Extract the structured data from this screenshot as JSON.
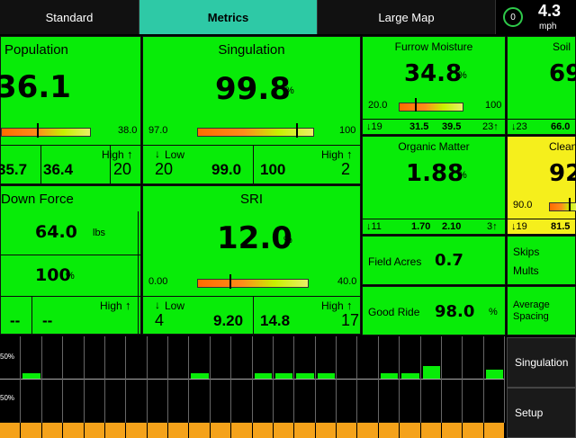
{
  "tabs": [
    {
      "label": "Standard"
    },
    {
      "label": "Metrics"
    },
    {
      "label": "Large Map"
    }
  ],
  "status": {
    "badge": "0",
    "speed": "4.3",
    "unit": "mph"
  },
  "population": {
    "title": "Population",
    "value": "36.1",
    "scale_max": "38.0",
    "low": "35.7",
    "mid": "36.4",
    "high_label": "High",
    "high": "20"
  },
  "singulation": {
    "title": "Singulation",
    "value": "99.8",
    "unit": "%",
    "scale_min": "97.0",
    "scale_max": "100",
    "low_label": "Low",
    "low": "20",
    "mid1": "99.0",
    "mid2": "100",
    "high_label": "High",
    "high": "2"
  },
  "furrow": {
    "title": "Furrow Moisture",
    "value": "34.8",
    "unit": "%",
    "scale_min": "20.0",
    "scale_max": "100",
    "s1": "19",
    "s2": "31.5",
    "s3": "39.5",
    "s4": "23"
  },
  "soil": {
    "title": "Soil",
    "value": "69",
    "s1": "23",
    "s2": "66.0"
  },
  "organic": {
    "title": "Organic Matter",
    "value": "1.88",
    "unit": "%",
    "s1": "11",
    "s2": "1.70",
    "s3": "2.10",
    "s4": "3"
  },
  "clean": {
    "title": "Clean",
    "value": "92",
    "scale_min": "90.0",
    "s1": "19",
    "s2": "81.5"
  },
  "downforce": {
    "title": "Down Force",
    "value": "64.0",
    "unit": "lbs",
    "pct": "100",
    "pct_unit": "%",
    "high_label": "High",
    "low_dash": "--",
    "mid_dash": "--"
  },
  "sri": {
    "title": "SRI",
    "value": "12.0",
    "unit": "%",
    "scale_min": "0.00",
    "scale_max": "40.0",
    "low_label": "Low",
    "low": "4",
    "mid1": "9.20",
    "mid2": "14.8",
    "high_label": "High",
    "high": "17"
  },
  "field_acres": {
    "label": "Field Acres",
    "value": "0.7"
  },
  "skips": {
    "label1": "Skips",
    "label2": "Mults"
  },
  "good_ride": {
    "label": "Good Ride",
    "value": "98.0",
    "unit": "%"
  },
  "avg_spacing": {
    "label": "Average Spacing"
  },
  "chart": {
    "top_label": "50%",
    "bottom_label": "50%"
  },
  "side_buttons": {
    "singulation": "Singulation",
    "setup": "Setup"
  }
}
